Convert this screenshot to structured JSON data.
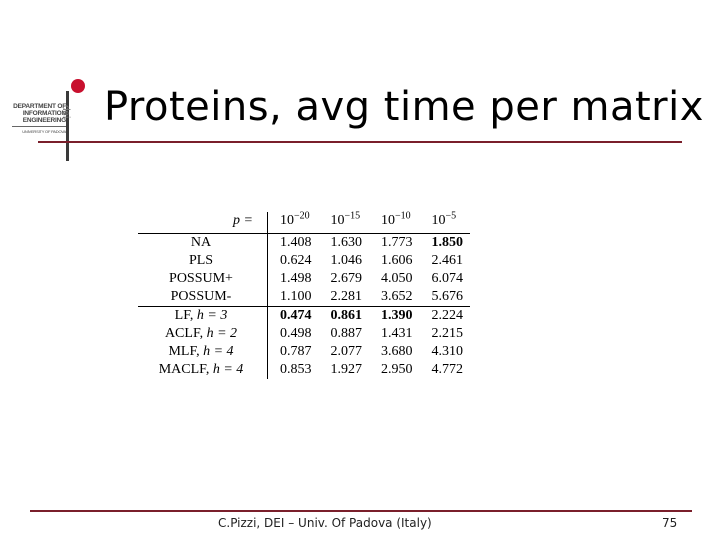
{
  "logo": {
    "lines": [
      "DEPARTMENT OF",
      "INFORMATION",
      "ENGINEERING"
    ],
    "university": "UNIVERSITY OF PADOVA",
    "glyph": "dei",
    "accent_color": "#c8102e"
  },
  "title": "Proteins, avg time per matrix",
  "table": {
    "corner_label": "p =",
    "columns": [
      {
        "base": "10",
        "exp": "−20"
      },
      {
        "base": "10",
        "exp": "−15"
      },
      {
        "base": "10",
        "exp": "−10"
      },
      {
        "base": "10",
        "exp": "−5"
      }
    ],
    "rows": [
      {
        "name": "NA",
        "h": "",
        "values": [
          "1.408",
          "1.630",
          "1.773",
          "1.850"
        ],
        "bold": [
          false,
          false,
          false,
          true
        ]
      },
      {
        "name": "PLS",
        "h": "",
        "values": [
          "0.624",
          "1.046",
          "1.606",
          "2.461"
        ],
        "bold": [
          false,
          false,
          false,
          false
        ]
      },
      {
        "name": "POSSUM+",
        "h": "",
        "values": [
          "1.498",
          "2.679",
          "4.050",
          "6.074"
        ],
        "bold": [
          false,
          false,
          false,
          false
        ]
      },
      {
        "name": "POSSUM-",
        "h": "",
        "values": [
          "1.100",
          "2.281",
          "3.652",
          "5.676"
        ],
        "bold": [
          false,
          false,
          false,
          false
        ]
      },
      {
        "name": "LF, ",
        "h": "h = 3",
        "values": [
          "0.474",
          "0.861",
          "1.390",
          "2.224"
        ],
        "bold": [
          true,
          true,
          true,
          false
        ]
      },
      {
        "name": "ACLF, ",
        "h": "h = 2",
        "values": [
          "0.498",
          "0.887",
          "1.431",
          "2.215"
        ],
        "bold": [
          false,
          false,
          false,
          false
        ]
      },
      {
        "name": "MLF, ",
        "h": "h = 4",
        "values": [
          "0.787",
          "2.077",
          "3.680",
          "4.310"
        ],
        "bold": [
          false,
          false,
          false,
          false
        ]
      },
      {
        "name": "MACLF, ",
        "h": "h = 4",
        "values": [
          "0.853",
          "1.927",
          "2.950",
          "4.772"
        ],
        "bold": [
          false,
          false,
          false,
          false
        ]
      }
    ]
  },
  "footer": {
    "text": "C.Pizzi, DEI – Univ. Of Padova (Italy)",
    "page": "75"
  }
}
